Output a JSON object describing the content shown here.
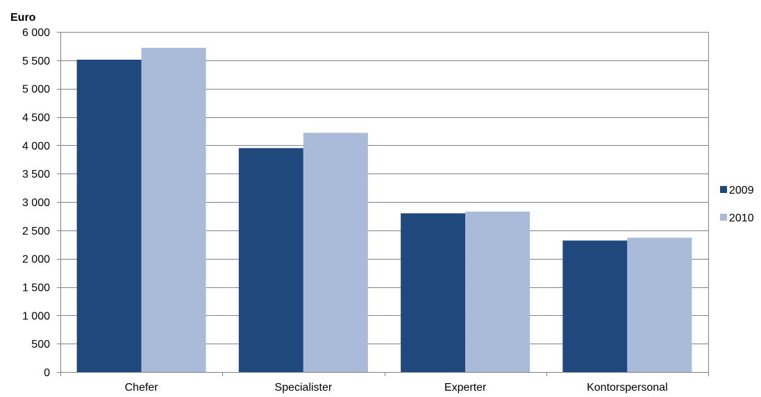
{
  "chart_data": {
    "type": "bar",
    "unit_label": "Euro",
    "categories": [
      "Chefer",
      "Specialister",
      "Experter",
      "Kontorspersonal"
    ],
    "series": [
      {
        "name": "2009",
        "values": [
          5510,
          3950,
          2800,
          2320
        ],
        "color": "#1f497d"
      },
      {
        "name": "2010",
        "values": [
          5720,
          4220,
          2830,
          2370
        ],
        "color": "#a9bbd8"
      }
    ],
    "y_ticks": [
      {
        "value": 0,
        "label": "0"
      },
      {
        "value": 500,
        "label": "500"
      },
      {
        "value": 1000,
        "label": "1 000"
      },
      {
        "value": 1500,
        "label": "1 500"
      },
      {
        "value": 2000,
        "label": "2 000"
      },
      {
        "value": 2500,
        "label": "2 500"
      },
      {
        "value": 3000,
        "label": "3 000"
      },
      {
        "value": 3500,
        "label": "3 500"
      },
      {
        "value": 4000,
        "label": "4 000"
      },
      {
        "value": 4500,
        "label": "4 500"
      },
      {
        "value": 5000,
        "label": "5 000"
      },
      {
        "value": 5500,
        "label": "5 500"
      },
      {
        "value": 6000,
        "label": "6 000"
      }
    ],
    "ylim": [
      0,
      6000
    ],
    "grid": true,
    "legend_position": "right",
    "gridline_color": "#808080"
  }
}
